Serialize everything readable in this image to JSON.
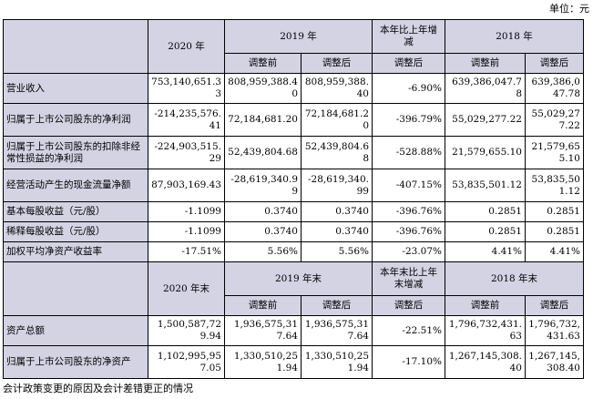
{
  "unit_label": "单位：元",
  "section1": {
    "header": {
      "col_2020": "2020 年",
      "col_2019": "2019 年",
      "col_change": "本年比上年增减",
      "col_2018": "2018 年",
      "sub_before": "调整前",
      "sub_after": "调整后"
    },
    "rows": [
      {
        "label": "营业收入",
        "v2020": "753,140,651.33",
        "v2019_before": "808,959,388.40",
        "v2019_after": "808,959,388.40",
        "change": "-6.90%",
        "v2018_before": "639,386,047.78",
        "v2018_after": "639,386,047.78"
      },
      {
        "label": "归属于上市公司股东的净利润",
        "v2020": "-214,235,576.41",
        "v2019_before": "72,184,681.20",
        "v2019_after": "72,184,681.20",
        "change": "-396.79%",
        "v2018_before": "55,029,277.22",
        "v2018_after": "55,029,277.22"
      },
      {
        "label": "归属于上市公司股东的扣除非经常性损益的净利润",
        "v2020": "-224,903,515.29",
        "v2019_before": "52,439,804.68",
        "v2019_after": "52,439,804.68",
        "change": "-528.88%",
        "v2018_before": "21,579,655.10",
        "v2018_after": "21,579,655.10"
      },
      {
        "label": "经营活动产生的现金流量净额",
        "v2020": "87,903,169.43",
        "v2019_before": "-28,619,340.99",
        "v2019_after": "-28,619,340.99",
        "change": "-407.15%",
        "v2018_before": "53,835,501.12",
        "v2018_after": "53,835,501.12"
      },
      {
        "label": "基本每股收益（元/股）",
        "v2020": "-1.1099",
        "v2019_before": "0.3740",
        "v2019_after": "0.3740",
        "change": "-396.76%",
        "v2018_before": "0.2851",
        "v2018_after": "0.2851"
      },
      {
        "label": "稀释每股收益（元/股）",
        "v2020": "-1.1099",
        "v2019_before": "0.3740",
        "v2019_after": "0.3740",
        "change": "-396.76%",
        "v2018_before": "0.2851",
        "v2018_after": "0.2851"
      },
      {
        "label": "加权平均净资产收益率",
        "v2020": "-17.51%",
        "v2019_before": "5.56%",
        "v2019_after": "5.56%",
        "change": "-23.07%",
        "v2018_before": "4.41%",
        "v2018_after": "4.41%"
      }
    ]
  },
  "section2": {
    "header": {
      "col_2020": "2020 年末",
      "col_2019": "2019 年末",
      "col_change": "本年末比上年末增减",
      "col_2018": "2018 年末",
      "sub_before": "调整前",
      "sub_after": "调整后"
    },
    "rows": [
      {
        "label": "资产总额",
        "v2020": "1,500,587,729.94",
        "v2019_before": "1,936,575,317.64",
        "v2019_after": "1,936,575,317.64",
        "change": "-22.51%",
        "v2018_before": "1,796,732,431.63",
        "v2018_after": "1,796,732,431.63"
      },
      {
        "label": "归属于上市公司股东的净资产",
        "v2020": "1,102,995,957.05",
        "v2019_before": "1,330,510,251.94",
        "v2019_after": "1,330,510,251.94",
        "change": "-17.10%",
        "v2018_before": "1,267,145,308.40",
        "v2018_after": "1,267,145,308.40"
      }
    ]
  },
  "footnote": "会计政策变更的原因及会计差错更正的情况"
}
